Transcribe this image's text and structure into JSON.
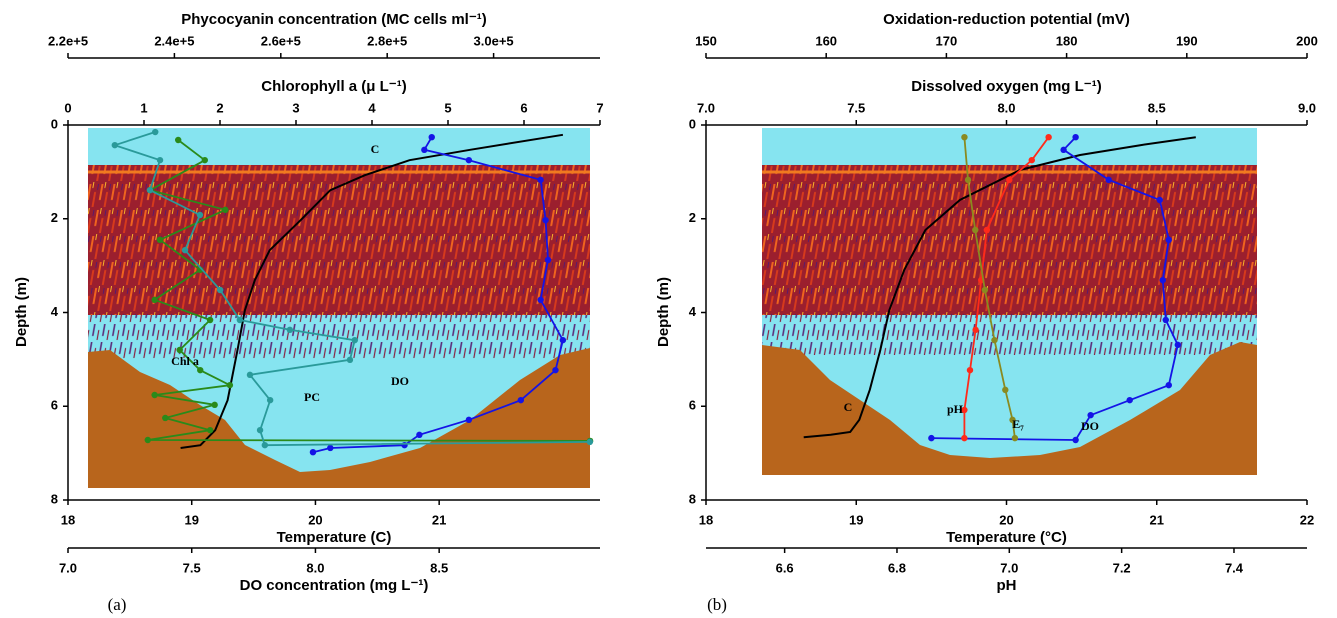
{
  "chart_data": [
    {
      "type": "profile",
      "panel_label": "(a)",
      "ylabel": "Depth (m)",
      "ylim": [
        0,
        8
      ],
      "yticks": [
        0,
        2,
        4,
        6,
        8
      ],
      "y_inverted": true,
      "x_axes": [
        {
          "position": "top",
          "label": "Phycocyanin concentration (MC cells ml⁻¹)",
          "xlim": [
            220000,
            320000
          ],
          "xticks": [
            {
              "value": 220000,
              "label": "2.2e+5"
            },
            {
              "value": 240000,
              "label": "2.4e+5"
            },
            {
              "value": 260000,
              "label": "2.6e+5"
            },
            {
              "value": 280000,
              "label": "2.8e+5"
            },
            {
              "value": 300000,
              "label": "3.0e+5"
            }
          ]
        },
        {
          "position": "top",
          "label": "Chlorophyll a (μ L⁻¹)",
          "xlim": [
            0,
            7
          ],
          "xticks": [
            0,
            1,
            2,
            3,
            4,
            5,
            6,
            7
          ]
        },
        {
          "position": "bottom",
          "label": "Temperature (C)",
          "xlim": [
            18,
            22.3
          ],
          "xticks": [
            18,
            19,
            20,
            21
          ]
        },
        {
          "position": "bottom",
          "label": "DO concentration (mg L⁻¹)",
          "xlim": [
            7,
            9.15
          ],
          "xticks": [
            {
              "value": 7,
              "label": "7.0"
            },
            7.5,
            {
              "value": 8,
              "label": "8.0"
            },
            8.5
          ]
        }
      ],
      "series": [
        {
          "name": "C",
          "color": "#000000",
          "x_axis": 2,
          "marker": false,
          "depth": [
            0.21,
            0.53,
            0.75,
            1.07,
            1.39,
            2.03,
            2.67,
            3.31,
            3.95,
            4.8,
            5.87,
            6.51,
            6.83,
            6.89
          ],
          "values": [
            22.0,
            21.25,
            20.76,
            20.4,
            20.12,
            19.88,
            19.63,
            19.51,
            19.43,
            19.37,
            19.29,
            19.19,
            19.07,
            18.91
          ]
        },
        {
          "name": "DO",
          "color": "#1414e6",
          "x_axis": 3,
          "marker": true,
          "depth": [
            0.26,
            0.53,
            0.75,
            1.17,
            2.03,
            2.88,
            3.73,
            4.59,
            5.23,
            5.87,
            6.29,
            6.61,
            6.83,
            6.89,
            6.98
          ],
          "values": [
            8.47,
            8.44,
            8.62,
            8.91,
            8.93,
            8.94,
            8.91,
            9.0,
            8.97,
            8.83,
            8.62,
            8.42,
            8.36,
            8.06,
            7.99
          ]
        },
        {
          "name": "Chl a",
          "color": "#2a8a1a",
          "x_axis": 1,
          "marker": true,
          "depth": [
            0.32,
            0.75,
            1.39,
            1.81,
            2.45,
            3.09,
            3.73,
            4.16,
            4.8,
            5.23,
            5.55,
            5.76,
            5.97,
            6.25,
            6.51,
            6.72,
            6.74
          ],
          "values": [
            1.45,
            1.8,
            1.08,
            2.07,
            1.21,
            1.74,
            1.14,
            1.87,
            1.47,
            1.74,
            2.13,
            1.14,
            1.93,
            1.28,
            1.87,
            1.05,
            6.87
          ]
        },
        {
          "name": "PC",
          "color": "#2a9a9a",
          "x_axis": 0,
          "marker": true,
          "depth": [
            0.15,
            0.43,
            0.75,
            1.39,
            1.92,
            2.67,
            3.52,
            4.16,
            4.37,
            4.59,
            5.01,
            5.33,
            5.87,
            6.51,
            6.83,
            6.76
          ],
          "values": [
            236400,
            228800,
            237300,
            235400,
            244800,
            242000,
            248600,
            252300,
            261700,
            273900,
            273000,
            254200,
            258000,
            256100,
            257000,
            318100
          ]
        }
      ]
    },
    {
      "type": "profile",
      "panel_label": "(b)",
      "ylabel": "Depth (m)",
      "ylim": [
        0,
        8
      ],
      "yticks": [
        0,
        2,
        4,
        6,
        8
      ],
      "y_inverted": true,
      "x_axes": [
        {
          "position": "top",
          "label": "Oxidation-reduction potential (mV)",
          "xlim": [
            150,
            200
          ],
          "xticks": [
            150,
            160,
            170,
            180,
            190,
            200
          ]
        },
        {
          "position": "top",
          "label": "Dissolved oxygen (mg L⁻¹)",
          "xlim": [
            7,
            9
          ],
          "xticks": [
            {
              "value": 7,
              "label": "7.0"
            },
            7.5,
            {
              "value": 8,
              "label": "8.0"
            },
            8.5,
            {
              "value": 9,
              "label": "9.0"
            }
          ]
        },
        {
          "position": "bottom",
          "label": "Temperature (°C)",
          "xlim": [
            18,
            22
          ],
          "xticks": [
            18,
            19,
            20,
            21,
            22
          ]
        },
        {
          "position": "bottom",
          "label": "pH",
          "xlim": [
            6.46,
            7.53
          ],
          "xticks": [
            6.6,
            6.8,
            {
              "value": 7,
              "label": "7.0"
            },
            7.2,
            7.4
          ]
        }
      ],
      "series": [
        {
          "name": "C",
          "color": "#000000",
          "x_axis": 2,
          "marker": false,
          "depth": [
            0.26,
            0.43,
            0.64,
            0.96,
            1.6,
            2.24,
            3.09,
            3.95,
            4.8,
            5.65,
            6.29,
            6.55,
            6.61,
            6.66
          ],
          "values": [
            21.26,
            20.89,
            20.49,
            20.09,
            19.69,
            19.46,
            19.32,
            19.22,
            19.16,
            19.09,
            19.02,
            18.96,
            18.83,
            18.65
          ]
        },
        {
          "name": "DO",
          "color": "#1414e6",
          "x_axis": 1,
          "marker": true,
          "depth": [
            0.26,
            0.53,
            1.17,
            1.6,
            2.45,
            3.31,
            4.16,
            4.69,
            5.55,
            5.87,
            6.19,
            6.72,
            6.68
          ],
          "values": [
            8.23,
            8.19,
            8.34,
            8.51,
            8.54,
            8.52,
            8.53,
            8.57,
            8.54,
            8.41,
            8.28,
            8.23,
            7.75
          ]
        },
        {
          "name": "pH",
          "color": "#ff2a1a",
          "x_axis": 3,
          "marker": true,
          "depth": [
            0.26,
            0.75,
            1.17,
            2.24,
            3.31,
            4.37,
            5.23,
            6.08,
            6.68
          ],
          "values": [
            7.07,
            7.04,
            7.0,
            6.96,
            6.95,
            6.94,
            6.93,
            6.92,
            6.92
          ]
        },
        {
          "name": "E₇",
          "color": "#8a8a20",
          "x_axis": 0,
          "marker": true,
          "depth": [
            0.26,
            1.17,
            2.24,
            3.52,
            4.59,
            5.65,
            6.29,
            6.68
          ],
          "values": [
            171.5,
            171.8,
            172.4,
            173.2,
            174.0,
            174.9,
            175.5,
            175.7
          ]
        }
      ]
    }
  ]
}
